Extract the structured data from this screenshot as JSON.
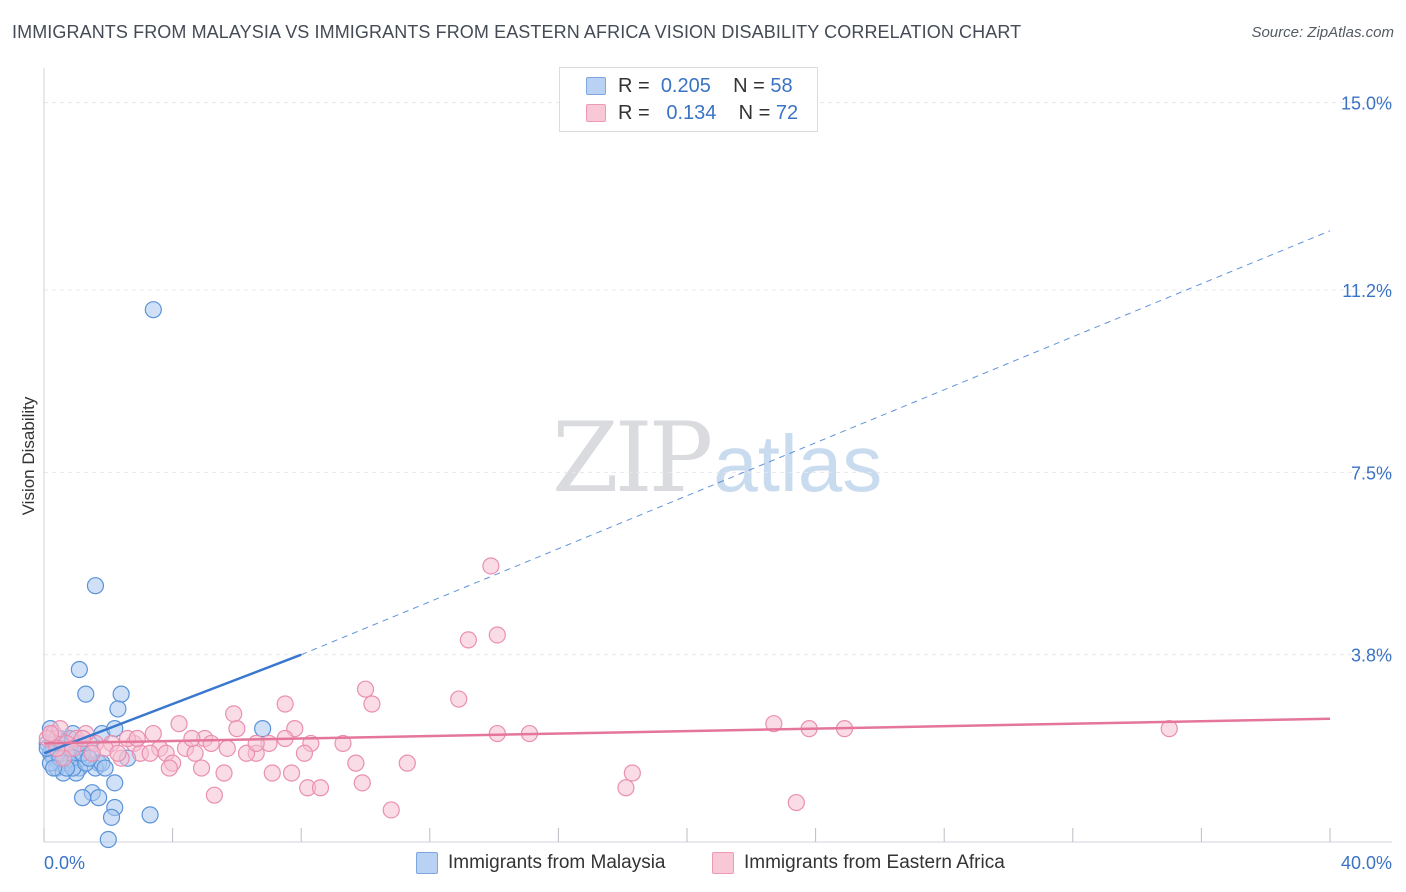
{
  "title": "IMMIGRANTS FROM MALAYSIA VS IMMIGRANTS FROM EASTERN AFRICA VISION DISABILITY CORRELATION CHART",
  "source": "Source: ZipAtlas.com",
  "watermark": {
    "zip": "ZIP",
    "atlas": "atlas"
  },
  "legend": {
    "r_label": "R =",
    "n_label": "N =",
    "series": [
      {
        "name": "Immigrants from Malaysia",
        "r": "0.205",
        "n": "58"
      },
      {
        "name": "Immigrants from Eastern Africa",
        "r": "0.134",
        "n": "72"
      }
    ]
  },
  "colors": {
    "blue_fill": "#a9c8f0",
    "blue_stroke": "#5b93d8",
    "blue_line": "#3a78d0",
    "pink_fill": "#f6bfd1",
    "pink_stroke": "#ea8fb0",
    "pink_line": "#e4769c",
    "grid": "#e6e8eb",
    "tick_label": "#3b73c4"
  },
  "chart_data": {
    "type": "scatter",
    "title": "IMMIGRANTS FROM MALAYSIA VS IMMIGRANTS FROM EASTERN AFRICA VISION DISABILITY CORRELATION CHART",
    "xlabel": "",
    "ylabel": "Vision Disability",
    "xlim": [
      0,
      40
    ],
    "ylim": [
      0,
      15.5
    ],
    "x_tick_labels": [
      "0.0%",
      "40.0%"
    ],
    "y_ticks": [
      3.8,
      7.5,
      11.2,
      15.0
    ],
    "y_tick_labels": [
      "3.8%",
      "7.5%",
      "11.2%",
      "15.0%"
    ],
    "grid": true,
    "legend_position": "top-center",
    "series": [
      {
        "name": "Immigrants from Malaysia",
        "color": "blue",
        "trend": {
          "x": [
            0,
            8
          ],
          "y": [
            1.8,
            3.8
          ],
          "dashed_extension_to": [
            40,
            12.4
          ]
        },
        "points": [
          [
            3.4,
            10.8
          ],
          [
            1.6,
            5.2
          ],
          [
            1.1,
            3.5
          ],
          [
            1.3,
            3.0
          ],
          [
            2.4,
            3.0
          ],
          [
            2.3,
            2.7
          ],
          [
            6.8,
            2.3
          ],
          [
            1.8,
            2.2
          ],
          [
            2.2,
            2.3
          ],
          [
            0.2,
            2.2
          ],
          [
            0.5,
            2.1
          ],
          [
            0.8,
            2.1
          ],
          [
            1.4,
            2.0
          ],
          [
            0.1,
            2.0
          ],
          [
            0.3,
            1.9
          ],
          [
            0.6,
            1.9
          ],
          [
            1.0,
            1.9
          ],
          [
            1.5,
            1.8
          ],
          [
            0.2,
            1.8
          ],
          [
            0.4,
            1.8
          ],
          [
            0.7,
            1.8
          ],
          [
            1.2,
            1.7
          ],
          [
            0.9,
            1.7
          ],
          [
            0.3,
            1.7
          ],
          [
            2.6,
            1.7
          ],
          [
            1.7,
            1.6
          ],
          [
            0.5,
            1.6
          ],
          [
            0.8,
            1.6
          ],
          [
            1.1,
            1.5
          ],
          [
            0.4,
            1.5
          ],
          [
            1.6,
            1.5
          ],
          [
            0.6,
            1.4
          ],
          [
            1.0,
            1.4
          ],
          [
            0.2,
            1.6
          ],
          [
            1.8,
            1.6
          ],
          [
            0.9,
            1.5
          ],
          [
            0.1,
            1.9
          ],
          [
            0.7,
            1.5
          ],
          [
            1.3,
            1.6
          ],
          [
            0.5,
            1.7
          ],
          [
            0.3,
            1.5
          ],
          [
            1.9,
            1.5
          ],
          [
            1.2,
            1.8
          ],
          [
            0.8,
            1.9
          ],
          [
            2.2,
            1.2
          ],
          [
            1.5,
            1.0
          ],
          [
            1.2,
            0.9
          ],
          [
            1.7,
            0.9
          ],
          [
            2.2,
            0.7
          ],
          [
            2.1,
            0.5
          ],
          [
            3.3,
            0.55
          ],
          [
            2.0,
            0.05
          ],
          [
            0.6,
            2.0
          ],
          [
            1.4,
            1.7
          ],
          [
            0.2,
            2.3
          ],
          [
            0.9,
            2.2
          ],
          [
            1.1,
            2.0
          ],
          [
            0.4,
            2.1
          ]
        ]
      },
      {
        "name": "Immigrants from Eastern Africa",
        "color": "pink",
        "trend": {
          "x": [
            0,
            40
          ],
          "y": [
            2.0,
            2.5
          ]
        },
        "points": [
          [
            13.9,
            5.6
          ],
          [
            14.1,
            4.2
          ],
          [
            13.2,
            4.1
          ],
          [
            10.0,
            3.1
          ],
          [
            12.9,
            2.9
          ],
          [
            10.2,
            2.8
          ],
          [
            7.5,
            2.8
          ],
          [
            5.9,
            2.6
          ],
          [
            4.2,
            2.4
          ],
          [
            6.0,
            2.3
          ],
          [
            7.8,
            2.3
          ],
          [
            22.7,
            2.4
          ],
          [
            23.8,
            2.3
          ],
          [
            24.9,
            2.3
          ],
          [
            35.0,
            2.3
          ],
          [
            14.1,
            2.2
          ],
          [
            15.1,
            2.2
          ],
          [
            3.4,
            2.2
          ],
          [
            5.0,
            2.1
          ],
          [
            7.5,
            2.1
          ],
          [
            9.3,
            2.0
          ],
          [
            8.3,
            2.0
          ],
          [
            2.1,
            2.0
          ],
          [
            2.8,
            2.0
          ],
          [
            3.6,
            1.9
          ],
          [
            4.4,
            1.9
          ],
          [
            5.7,
            1.9
          ],
          [
            6.6,
            1.8
          ],
          [
            7.0,
            2.0
          ],
          [
            8.1,
            1.8
          ],
          [
            3.0,
            1.8
          ],
          [
            3.8,
            1.8
          ],
          [
            4.7,
            1.8
          ],
          [
            2.4,
            1.7
          ],
          [
            3.3,
            1.8
          ],
          [
            6.3,
            1.8
          ],
          [
            4.0,
            1.6
          ],
          [
            4.9,
            1.5
          ],
          [
            9.7,
            1.6
          ],
          [
            11.3,
            1.6
          ],
          [
            3.9,
            1.5
          ],
          [
            5.6,
            1.4
          ],
          [
            7.1,
            1.4
          ],
          [
            7.7,
            1.4
          ],
          [
            18.3,
            1.4
          ],
          [
            9.9,
            1.2
          ],
          [
            8.2,
            1.1
          ],
          [
            8.6,
            1.1
          ],
          [
            18.1,
            1.1
          ],
          [
            5.3,
            0.95
          ],
          [
            23.4,
            0.8
          ],
          [
            10.8,
            0.65
          ],
          [
            1.0,
            2.1
          ],
          [
            1.6,
            2.0
          ],
          [
            0.3,
            2.2
          ],
          [
            0.7,
            2.0
          ],
          [
            1.3,
            2.2
          ],
          [
            2.6,
            2.1
          ],
          [
            0.5,
            2.3
          ],
          [
            0.9,
            1.9
          ],
          [
            1.2,
            2.1
          ],
          [
            1.9,
            1.9
          ],
          [
            0.1,
            2.1
          ],
          [
            2.3,
            1.8
          ],
          [
            0.6,
            1.7
          ],
          [
            4.6,
            2.1
          ],
          [
            1.5,
            1.8
          ],
          [
            2.9,
            2.1
          ],
          [
            0.4,
            1.9
          ],
          [
            6.6,
            2.0
          ],
          [
            5.2,
            2.0
          ],
          [
            0.2,
            2.2
          ]
        ]
      }
    ]
  }
}
